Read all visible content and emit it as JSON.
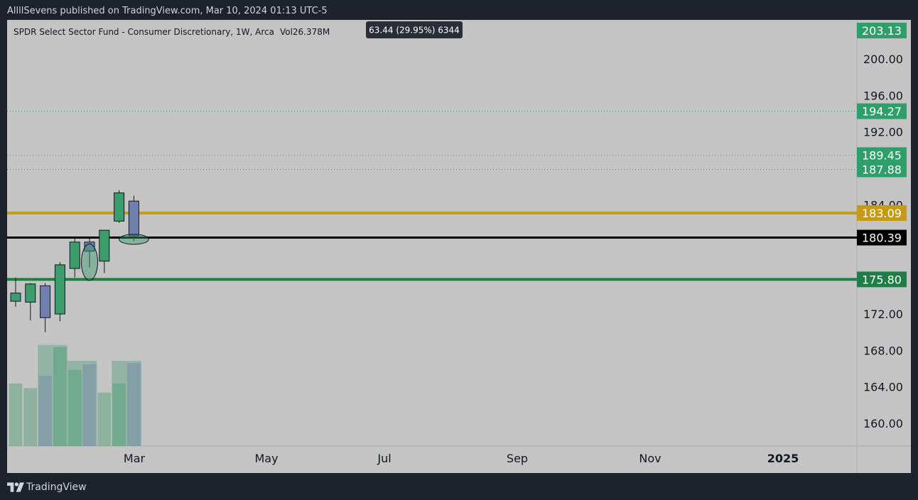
{
  "header": {
    "published_by": "AllllSevens published on TradingView.com, Mar 10, 2024 01:13 UTC-5"
  },
  "footer": {
    "brand": "TradingView"
  },
  "colors": {
    "background": "#c4c4c4",
    "bull": "#3c9c6c",
    "bear": "#6f7fae",
    "gold": "#c49a18",
    "black": "#000000",
    "green_line": "#1e7e46",
    "label_green": "#2e9e6a",
    "dotted": "#2e9e6a"
  },
  "chart_data": {
    "type": "candlestick",
    "title": "SPDR Select Sector Fund - Consumer Discretionary, 1W, Arca",
    "volume_label": "Vol26.378M",
    "measure_tooltip": "63.44 (29.95%) 6344",
    "y_range": [
      157.5,
      204.3
    ],
    "y_ticks": [
      "200.00",
      "196.00",
      "192.00",
      "184.00",
      "172.00",
      "168.00",
      "164.00",
      "160.00"
    ],
    "x_ticks": [
      "Mar",
      "May",
      "Jul",
      "Sep",
      "Nov",
      "2025"
    ],
    "candles": [
      {
        "open": 173.4,
        "high": 176.0,
        "low": 172.8,
        "close": 174.3,
        "dir": "up"
      },
      {
        "open": 173.3,
        "high": 175.4,
        "low": 171.3,
        "close": 175.3,
        "dir": "up"
      },
      {
        "open": 175.1,
        "high": 175.4,
        "low": 170.0,
        "close": 171.6,
        "dir": "down"
      },
      {
        "open": 172.0,
        "high": 177.7,
        "low": 171.2,
        "close": 177.4,
        "dir": "up"
      },
      {
        "open": 177.0,
        "high": 180.5,
        "low": 176.0,
        "close": 179.9,
        "dir": "up"
      },
      {
        "open": 179.9,
        "high": 180.4,
        "low": 177.1,
        "close": 178.9,
        "dir": "down"
      },
      {
        "open": 177.8,
        "high": 181.1,
        "low": 176.5,
        "close": 181.2,
        "dir": "up"
      },
      {
        "open": 182.2,
        "high": 185.6,
        "low": 182.0,
        "close": 185.3,
        "dir": "up"
      },
      {
        "open": 184.4,
        "high": 185.0,
        "low": 180.0,
        "close": 180.6,
        "dir": "down"
      }
    ],
    "volume_bars": [
      {
        "value": 0.55,
        "dir": "up"
      },
      {
        "value": 0.51,
        "dir": "up"
      },
      {
        "value": 0.62,
        "dir": "down"
      },
      {
        "value": 0.87,
        "dir": "up"
      },
      {
        "value": 0.67,
        "dir": "up"
      },
      {
        "value": 0.72,
        "dir": "down"
      },
      {
        "value": 0.47,
        "dir": "up"
      },
      {
        "value": 0.55,
        "dir": "up"
      },
      {
        "value": 0.73,
        "dir": "down"
      }
    ],
    "volume_boxes": [
      {
        "from": 2,
        "to": 4,
        "value": 0.89
      },
      {
        "from": 4,
        "to": 6,
        "value": 0.75
      },
      {
        "from": 7,
        "to": 9,
        "value": 0.75
      }
    ],
    "horizontal_lines": [
      {
        "price": 183.09,
        "label": "183.09",
        "style": "gold"
      },
      {
        "price": 180.39,
        "label": "180.39",
        "style": "black"
      },
      {
        "price": 175.8,
        "label": "175.80",
        "style": "green"
      }
    ],
    "dotted_levels": [
      {
        "price": 194.27,
        "label": "194.27"
      },
      {
        "price": 189.45,
        "label": "189.45"
      },
      {
        "price": 187.88,
        "label": "187.88"
      }
    ],
    "top_price_label": "203.13",
    "ellipse_annotations": [
      {
        "candle": 5,
        "center": 177.7,
        "rx": 0.55,
        "ry": 2.0
      },
      {
        "candle": 8,
        "center": 180.2,
        "rx": 1.0,
        "ry": 0.55
      }
    ]
  }
}
